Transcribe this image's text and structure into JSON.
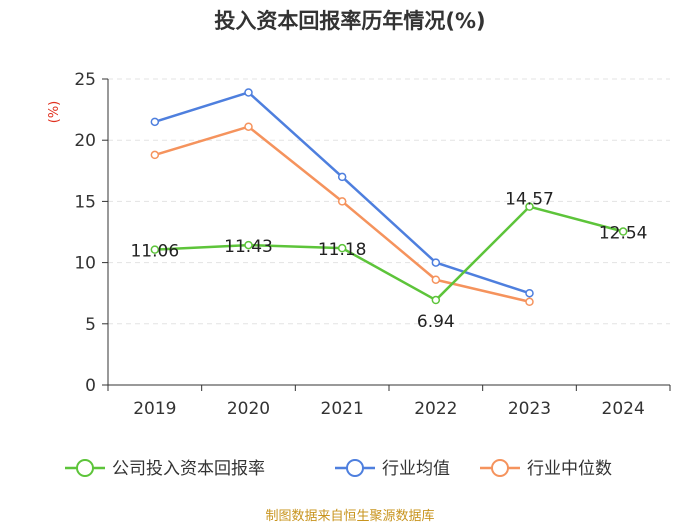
{
  "chart_data": {
    "type": "line",
    "title": "投入资本回报率历年情况(%)",
    "ylabel": "(%)",
    "categories": [
      "2019",
      "2020",
      "2021",
      "2022",
      "2023",
      "2024"
    ],
    "ylim": [
      0,
      25
    ],
    "yticks": [
      0,
      5,
      10,
      15,
      20,
      25
    ],
    "legend_position": "bottom",
    "series": [
      {
        "name": "公司投入资本回报率",
        "color": "#5dc43a",
        "values": [
          11.06,
          11.43,
          11.18,
          6.94,
          14.57,
          12.54
        ],
        "labels": [
          "11.06",
          "11.43",
          "11.18",
          "6.94",
          "14.57",
          "12.54"
        ]
      },
      {
        "name": "行业均值",
        "color": "#4e7fde",
        "values": [
          21.5,
          23.9,
          17.0,
          10.0,
          7.5,
          null
        ]
      },
      {
        "name": "行业中位数",
        "color": "#f5935d",
        "values": [
          18.8,
          21.1,
          15.0,
          8.6,
          6.8,
          null
        ]
      }
    ],
    "source": "制图数据来自恒生聚源数据库"
  }
}
